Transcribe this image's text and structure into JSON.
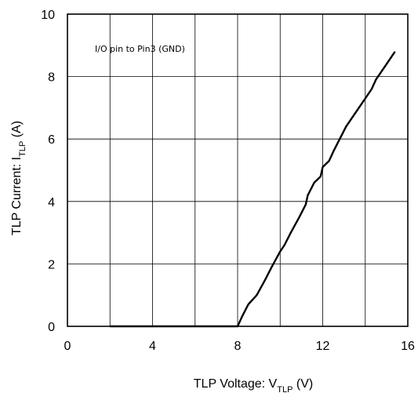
{
  "chart_data": {
    "type": "line",
    "annotation": "I/O pin to Pin3 (GND)",
    "xlabel": {
      "main": "TLP Voltage: V",
      "sub": "TLP",
      "unit": " (V)"
    },
    "ylabel": {
      "main": "TLP Current: I",
      "sub": "TLP",
      "unit": " (A)"
    },
    "xlim": [
      0,
      16
    ],
    "ylim": [
      0,
      10
    ],
    "xticks": [
      "0",
      "4",
      "8",
      "12",
      "16"
    ],
    "yticks": [
      "0",
      "2",
      "4",
      "6",
      "8",
      "10"
    ],
    "grid_x_step": 2,
    "grid_y_step": 2,
    "grid": true,
    "series": [
      {
        "color": "#000000",
        "x": [
          2.0,
          8.0,
          8.2,
          8.5,
          8.9,
          9.3,
          9.6,
          10.0,
          10.2,
          10.5,
          10.9,
          11.2,
          11.3,
          11.6,
          11.9,
          12.0,
          12.3,
          12.5,
          12.8,
          13.1,
          13.4,
          13.7,
          14.0,
          14.3,
          14.5,
          14.8,
          15.0,
          15.3,
          15.4
        ],
        "y": [
          0.0,
          0.0,
          0.3,
          0.7,
          1.0,
          1.5,
          1.9,
          2.4,
          2.6,
          3.0,
          3.5,
          3.9,
          4.2,
          4.6,
          4.8,
          5.1,
          5.3,
          5.6,
          6.0,
          6.4,
          6.7,
          7.0,
          7.3,
          7.6,
          7.9,
          8.2,
          8.4,
          8.7,
          8.8
        ]
      }
    ]
  }
}
